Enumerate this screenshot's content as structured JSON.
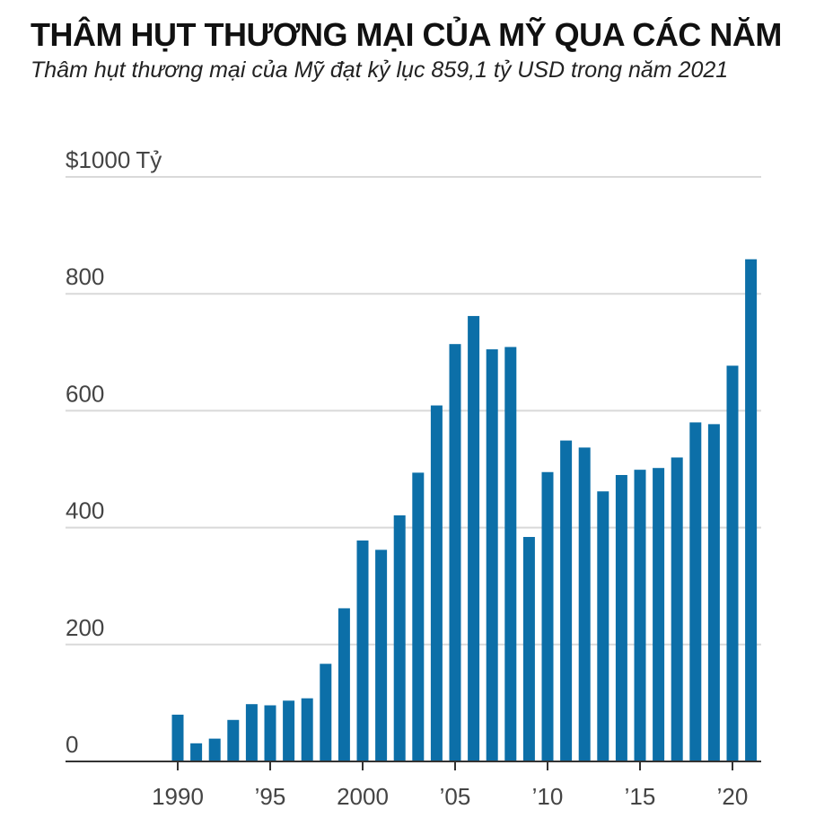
{
  "title": "THÂM HỤT THƯƠNG MẠI CỦA MỸ QUA CÁC NĂM",
  "subtitle": "Thâm hụt thương mại của Mỹ đạt kỷ lục 859,1 tỷ USD trong năm 2021",
  "colors": {
    "bar": "#0c6fa8",
    "grid": "#d9d9d9",
    "axis": "#333333"
  },
  "chart_data": {
    "type": "bar",
    "unit_label": "Tỷ",
    "x": [
      1990,
      1991,
      1992,
      1993,
      1994,
      1995,
      1996,
      1997,
      1998,
      1999,
      2000,
      2001,
      2002,
      2003,
      2004,
      2005,
      2006,
      2007,
      2008,
      2009,
      2010,
      2011,
      2012,
      2013,
      2014,
      2015,
      2016,
      2017,
      2018,
      2019,
      2020,
      2021
    ],
    "values": [
      80,
      31,
      39,
      71,
      98,
      96,
      104,
      108,
      167,
      262,
      378,
      362,
      421,
      494,
      609,
      714,
      762,
      705,
      709,
      384,
      495,
      549,
      537,
      462,
      490,
      499,
      502,
      520,
      580,
      577,
      677,
      859.1
    ],
    "ylim": [
      0,
      1000
    ],
    "y_ticks": [
      0,
      200,
      400,
      600,
      800,
      1000
    ],
    "y_tick_labels": [
      "0",
      "200",
      "400",
      "600",
      "800",
      "$1000"
    ],
    "x_ticks": [
      1990,
      1995,
      2000,
      2005,
      2010,
      2015,
      2020
    ],
    "x_tick_labels": [
      "1990",
      "’95",
      "2000",
      "’05",
      "’10",
      "’15",
      "’20"
    ],
    "grid": true
  }
}
